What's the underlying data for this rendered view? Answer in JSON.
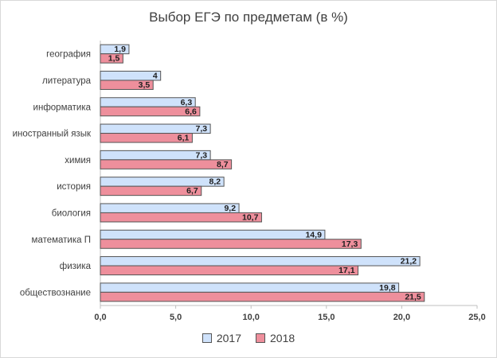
{
  "chart_data": {
    "type": "bar",
    "orientation": "horizontal",
    "title": "Выбор ЕГЭ по предметам (в %)",
    "categories": [
      "география",
      "литература",
      "информатика",
      "иностранный язык",
      "химия",
      "история",
      "биология",
      "математика П",
      "физика",
      "обществознание"
    ],
    "series": [
      {
        "name": "2017",
        "values": [
          1.9,
          4,
          6.3,
          7.3,
          7.3,
          8.2,
          9.2,
          14.9,
          21.2,
          19.8
        ],
        "labels": [
          "1,9",
          "4",
          "6,3",
          "7,3",
          "7,3",
          "8,2",
          "9,2",
          "14,9",
          "21,2",
          "19,8"
        ],
        "color": "#cfe2fb"
      },
      {
        "name": "2018",
        "values": [
          1.5,
          3.5,
          6.6,
          6.1,
          8.7,
          6.7,
          10.7,
          17.3,
          17.1,
          21.5
        ],
        "labels": [
          "1,5",
          "3,5",
          "6,6",
          "6,1",
          "8,7",
          "6,7",
          "10,7",
          "17,3",
          "17,1",
          "21,5"
        ],
        "color": "#ee8f9c"
      }
    ],
    "xlim": [
      0,
      25
    ],
    "xticks": [
      "0,0",
      "5,0",
      "10,0",
      "15,0",
      "20,0",
      "25,0"
    ],
    "grid": false,
    "legend_position": "bottom"
  }
}
